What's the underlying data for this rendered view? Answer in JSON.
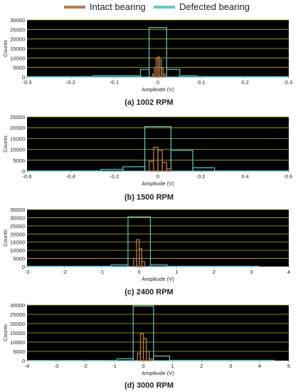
{
  "legend": {
    "intact": "Intact bearing",
    "defected": "Defected bearing",
    "intact_color": "#b87a4a",
    "defected_color": "#5cc8cc"
  },
  "style": {
    "plot_background": "#000000",
    "grid_color": "#b9b21e"
  },
  "chart_data": [
    {
      "type": "bar",
      "caption": "(a) 1002 RPM",
      "xlabel": "Amplitude (V)",
      "ylabel": "Counts",
      "xlim": [
        -0.3,
        0.3
      ],
      "ylim": [
        0,
        30000
      ],
      "xticks": [
        -0.3,
        -0.2,
        -0.1,
        0,
        0.1,
        0.2,
        0.3
      ],
      "xtick_labels": [
        "-0.3",
        "-0.2",
        "-0.1",
        "0",
        "0.1",
        "0.2",
        "0.3"
      ],
      "yticks": [
        0,
        5000,
        10000,
        15000,
        20000,
        25000,
        30000
      ],
      "ytick_labels": [
        "0",
        "5000",
        "10000",
        "15000",
        "20000",
        "25000",
        "30000"
      ],
      "series": [
        {
          "name": "Intact bearing",
          "bin_edges": [
            -0.012,
            -0.008,
            -0.004,
            0,
            0.004,
            0.008,
            0.012,
            0.016
          ],
          "counts": [
            1500,
            4500,
            9500,
            10500,
            9000,
            4500,
            1500
          ]
        },
        {
          "name": "Defected bearing",
          "bin_edges": [
            -0.3,
            -0.15,
            -0.04,
            -0.02,
            0.02,
            0.05,
            0.09,
            0.3
          ],
          "counts": [
            200,
            600,
            4000,
            26000,
            4000,
            600,
            200
          ]
        }
      ]
    },
    {
      "type": "bar",
      "caption": "(b) 1500 RPM",
      "xlabel": "Amplitude (V)",
      "ylabel": "Counts",
      "xlim": [
        -0.6,
        0.6
      ],
      "ylim": [
        0,
        25000
      ],
      "xticks": [
        -0.6,
        -0.4,
        -0.2,
        0,
        0.2,
        0.4,
        0.6
      ],
      "xtick_labels": [
        "-0.6",
        "-0.4",
        "-0.2",
        "0",
        "0.2",
        "0.4",
        "0.6"
      ],
      "yticks": [
        0,
        5000,
        10000,
        15000,
        20000,
        25000
      ],
      "ytick_labels": [
        "0",
        "5000",
        "10000",
        "15000",
        "20000",
        "25000"
      ],
      "series": [
        {
          "name": "Intact bearing",
          "bin_edges": [
            -0.04,
            -0.02,
            0,
            0.02,
            0.04,
            0.06
          ],
          "counts": [
            4500,
            11000,
            9500,
            4000,
            1000
          ]
        },
        {
          "name": "Defected bearing",
          "bin_edges": [
            -0.6,
            -0.26,
            -0.16,
            -0.06,
            0.06,
            0.16,
            0.26,
            0.6
          ],
          "counts": [
            100,
            800,
            2000,
            20500,
            9500,
            1500,
            100
          ]
        }
      ]
    },
    {
      "type": "bar",
      "caption": "(c) 2400 RPM",
      "xlabel": "Amplitude (V)",
      "ylabel": "Counts",
      "xlim": [
        -3,
        4
      ],
      "ylim": [
        0,
        35000
      ],
      "xticks": [
        -3,
        -2,
        -1,
        0,
        1,
        2,
        3,
        4
      ],
      "xtick_labels": [
        "-3",
        "-2",
        "-1",
        "0",
        "1",
        "2",
        "3",
        "4"
      ],
      "yticks": [
        0,
        5000,
        10000,
        15000,
        20000,
        25000,
        30000,
        35000
      ],
      "ytick_labels": [
        "0",
        "5000",
        "10000",
        "15000",
        "20000",
        "25000",
        "30000",
        "35000"
      ],
      "series": [
        {
          "name": "Intact bearing",
          "bin_edges": [
            -0.15,
            -0.07,
            0,
            0.07,
            0.15
          ],
          "counts": [
            5000,
            16500,
            11000,
            3000
          ]
        },
        {
          "name": "Defected bearing",
          "bin_edges": [
            -3,
            -0.75,
            -0.3,
            0.3,
            0.75,
            3.2
          ],
          "counts": [
            200,
            1000,
            30500,
            1000,
            200
          ]
        }
      ]
    },
    {
      "type": "bar",
      "caption": "(d) 3000 RPM",
      "xlabel": "Amplitude (V)",
      "ylabel": "Counts",
      "xlim": [
        -4,
        5
      ],
      "ylim": [
        0,
        30000
      ],
      "xticks": [
        -4,
        -3,
        -2,
        -1,
        0,
        1,
        2,
        3,
        4,
        5
      ],
      "xtick_labels": [
        "-4",
        "-3",
        "-2",
        "-1",
        "0",
        "1",
        "2",
        "3",
        "4",
        "5"
      ],
      "yticks": [
        0,
        5000,
        10000,
        15000,
        20000,
        25000,
        30000
      ],
      "ytick_labels": [
        "0",
        "5000",
        "10000",
        "15000",
        "20000",
        "25000",
        "30000"
      ],
      "series": [
        {
          "name": "Intact bearing",
          "bin_edges": [
            -0.2,
            -0.1,
            0,
            0.1,
            0.2,
            0.3
          ],
          "counts": [
            4000,
            14500,
            12000,
            5000,
            1000
          ]
        },
        {
          "name": "Defected bearing",
          "bin_edges": [
            -4,
            -0.9,
            -0.35,
            0.35,
            0.9,
            4.5
          ],
          "counts": [
            100,
            1000,
            29500,
            2500,
            200
          ]
        }
      ]
    }
  ]
}
